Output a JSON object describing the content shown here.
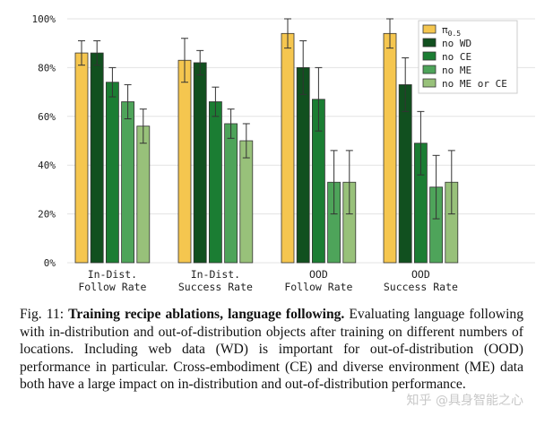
{
  "chart_data": {
    "type": "bar",
    "categories": [
      [
        "In-Dist.",
        "Follow Rate"
      ],
      [
        "In-Dist.",
        "Success Rate"
      ],
      [
        "OOD",
        "Follow Rate"
      ],
      [
        "OOD",
        "Success Rate"
      ]
    ],
    "series": [
      {
        "name": "π0.5",
        "color": "#f5c64f",
        "values": [
          86,
          83,
          94,
          94
        ],
        "err": [
          5,
          9,
          6,
          6
        ]
      },
      {
        "name": "no WD",
        "color": "#11501f",
        "values": [
          86,
          82,
          80,
          73
        ],
        "err": [
          5,
          5,
          11,
          11
        ]
      },
      {
        "name": "no CE",
        "color": "#1b7d33",
        "values": [
          74,
          66,
          67,
          49
        ],
        "err": [
          6,
          6,
          13,
          13
        ]
      },
      {
        "name": "no ME",
        "color": "#4ea45a",
        "values": [
          66,
          57,
          33,
          31
        ],
        "err": [
          7,
          6,
          13,
          13
        ]
      },
      {
        "name": "no ME or CE",
        "color": "#98c17a",
        "values": [
          56,
          50,
          33,
          33
        ],
        "err": [
          7,
          7,
          13,
          13
        ]
      }
    ],
    "yticks": [
      "0%",
      "20%",
      "40%",
      "60%",
      "80%",
      "100%"
    ],
    "ylim": [
      0,
      100
    ],
    "grid": true,
    "legend_position": "top-right"
  },
  "caption": {
    "figure_label": "Fig. 11:",
    "title": "Training recipe ablations, language following.",
    "body": "Evaluating language following with in-distribution and out-of-distribution objects after training on different numbers of locations. Including web data (WD) is important for out-of-distribution (OOD) performance in particular. Cross-embodiment (CE) and diverse environment (ME) data both have a large impact on in-distribution and out-of-distribution performance."
  },
  "watermark": "知乎 @具身智能之心"
}
